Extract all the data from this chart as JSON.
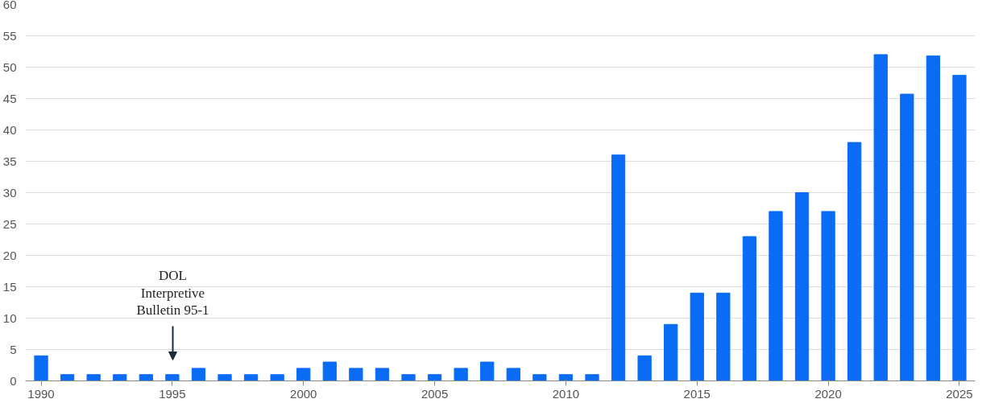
{
  "chart_data": {
    "type": "bar",
    "x": [
      1990,
      1991,
      1992,
      1993,
      1994,
      1995,
      1996,
      1997,
      1998,
      1999,
      2000,
      2001,
      2002,
      2003,
      2004,
      2005,
      2006,
      2007,
      2008,
      2009,
      2010,
      2011,
      2012,
      2013,
      2014,
      2015,
      2016,
      2017,
      2018,
      2019,
      2020,
      2021,
      2022,
      2023,
      2024,
      2025
    ],
    "values": [
      4,
      1,
      1,
      1,
      1,
      1,
      2,
      1,
      1,
      1,
      2,
      3,
      2,
      2,
      1,
      1,
      2,
      3,
      2,
      1,
      1,
      1,
      36,
      4,
      9,
      14,
      14,
      23,
      27,
      30,
      27,
      38,
      52,
      45.7,
      51.8,
      48.7
    ],
    "color": "#0a6cf5",
    "xlim": [
      1989.4,
      2025.6
    ],
    "xticks": [
      1990,
      1995,
      2000,
      2005,
      2010,
      2015,
      2020,
      2025
    ],
    "ylim": [
      0,
      60
    ],
    "yticks": [
      0,
      5,
      10,
      15,
      20,
      25,
      30,
      35,
      40,
      45,
      50,
      55,
      60
    ],
    "grid": "y",
    "annotations": [
      "DOL\nInterpretive\nBulletin 95-1"
    ]
  }
}
